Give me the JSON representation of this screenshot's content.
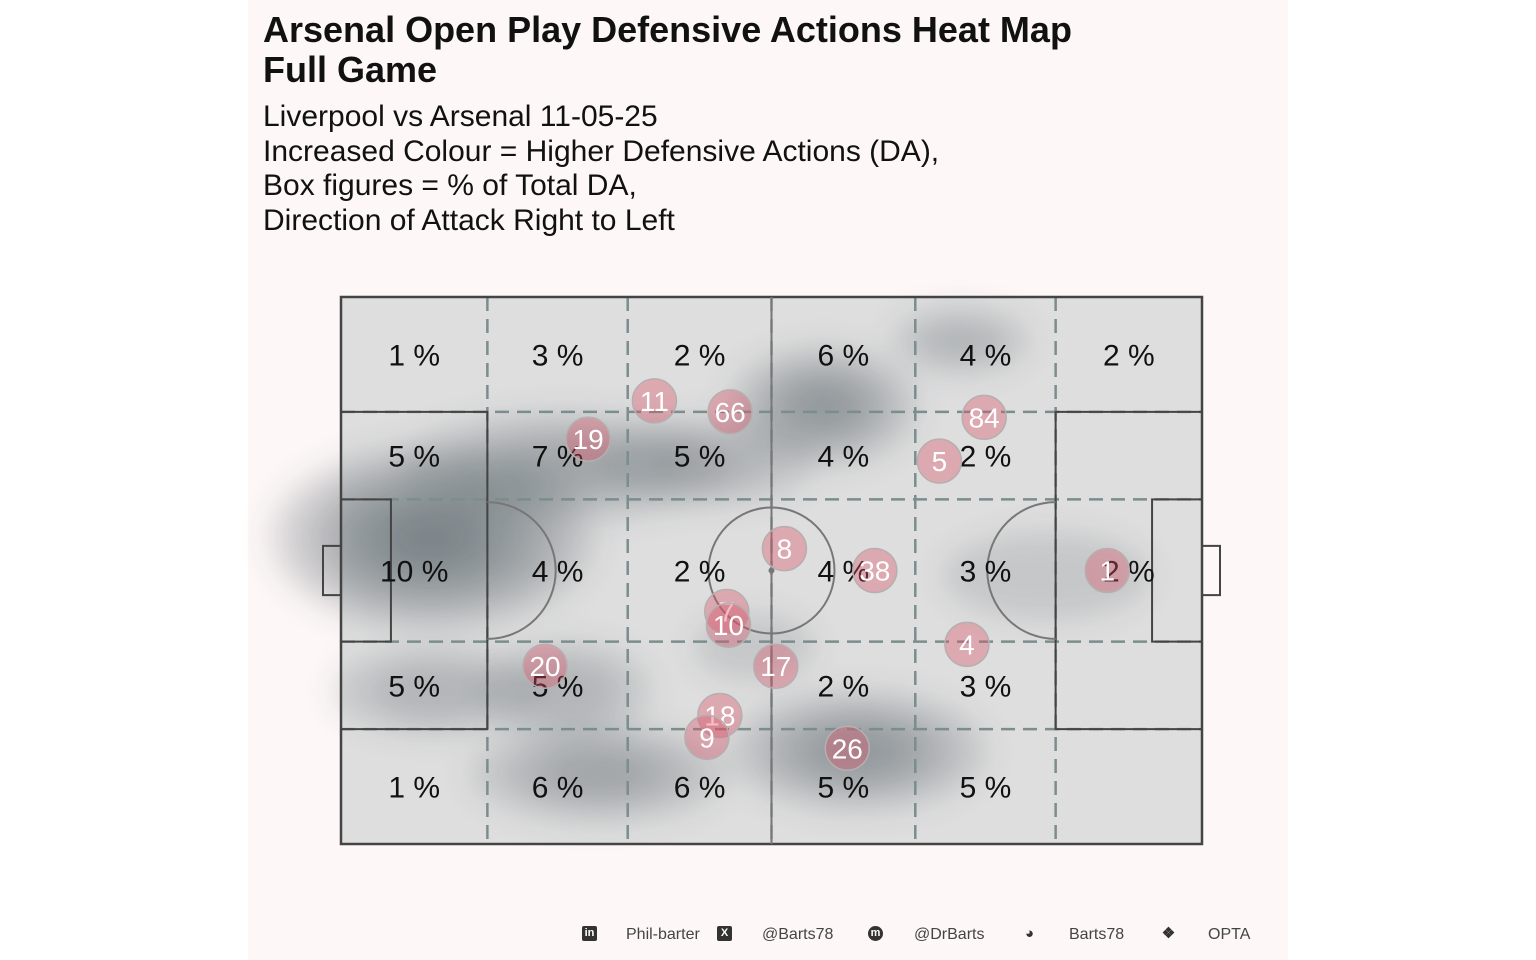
{
  "title": "Arsenal  Open Play Defensive Actions Heat Map\nFull Game",
  "subtitle_lines": [
    "Liverpool vs Arsenal 11-05-25",
    "Increased Colour = Higher Defensive Actions (DA),",
    "Box figures = % of Total DA,",
    "Direction of Attack Right to Left"
  ],
  "colors": {
    "panel_bg": "#fdf7f7",
    "pitch_fill": "#dedede",
    "pitch_line": "#444444",
    "grid_line": "#7b8d8d",
    "density": "#4c5761",
    "marker": "#d9556a",
    "marker_text": "#ffffff"
  },
  "chart_data": {
    "type": "heatmap",
    "description_units": "pitch coordinates 0-100 (x: length, y: width)",
    "zone_percent_labels": [
      [
        "1 %",
        "3 %",
        "2 %",
        "6 %",
        "4 %",
        "2 %"
      ],
      [
        "5 %",
        "7 %",
        "5 %",
        "4 %",
        "2 %",
        ""
      ],
      [
        "10 %",
        "4 %",
        "2 %",
        "4 %",
        "3 %",
        "2 %"
      ],
      [
        "5 %",
        "5 %",
        "",
        "2 %",
        "3 %",
        ""
      ],
      [
        "1 %",
        "6 %",
        "6 %",
        "5 %",
        "5 %",
        ""
      ]
    ],
    "zone_x_edges": [
      0,
      17,
      33.3,
      50,
      66.7,
      83,
      100
    ],
    "zone_y_edges": [
      0,
      21,
      37,
      63,
      79,
      100
    ],
    "players": [
      {
        "number": "11",
        "x": 36.4,
        "y": 19
      },
      {
        "number": "66",
        "x": 45.2,
        "y": 21
      },
      {
        "number": "19",
        "x": 28.7,
        "y": 26
      },
      {
        "number": "84",
        "x": 74.7,
        "y": 22
      },
      {
        "number": "5",
        "x": 69.5,
        "y": 30
      },
      {
        "number": "8",
        "x": 51.5,
        "y": 46
      },
      {
        "number": "38",
        "x": 62.0,
        "y": 50
      },
      {
        "number": "1",
        "x": 89.0,
        "y": 50
      },
      {
        "number": "7",
        "x": 44.8,
        "y": 57.5
      },
      {
        "number": "10",
        "x": 45.0,
        "y": 60
      },
      {
        "number": "4",
        "x": 72.7,
        "y": 63.5
      },
      {
        "number": "17",
        "x": 50.5,
        "y": 67.5
      },
      {
        "number": "20",
        "x": 23.7,
        "y": 67.5
      },
      {
        "number": "18",
        "x": 44.0,
        "y": 76.5
      },
      {
        "number": "9",
        "x": 42.5,
        "y": 80.5
      },
      {
        "number": "26",
        "x": 58.8,
        "y": 82.5
      }
    ],
    "density_blobs": [
      {
        "x": 10.5,
        "y": 44,
        "rx": 19,
        "ry": 17,
        "level": 6
      },
      {
        "x": 26,
        "y": 31,
        "rx": 19,
        "ry": 10,
        "level": 3
      },
      {
        "x": 56,
        "y": 20,
        "rx": 11,
        "ry": 11,
        "level": 4
      },
      {
        "x": 72,
        "y": 8,
        "rx": 8,
        "ry": 6,
        "level": 2
      },
      {
        "x": 60,
        "y": 83,
        "rx": 15,
        "ry": 11,
        "level": 4
      },
      {
        "x": 30,
        "y": 87,
        "rx": 15,
        "ry": 9,
        "level": 3
      },
      {
        "x": 11,
        "y": 72,
        "rx": 12,
        "ry": 8,
        "level": 2
      },
      {
        "x": 48,
        "y": 64,
        "rx": 7,
        "ry": 6,
        "level": 1
      },
      {
        "x": 82,
        "y": 51,
        "rx": 12,
        "ry": 8,
        "level": 1
      },
      {
        "x": 43,
        "y": 30,
        "rx": 12,
        "ry": 8,
        "level": 2
      },
      {
        "x": 26,
        "y": 72,
        "rx": 10,
        "ry": 9,
        "level": 2
      }
    ]
  },
  "footer": [
    {
      "icon": "linkedin-icon",
      "glyph": "in",
      "text": "Phil-barter"
    },
    {
      "icon": "x-twitter-icon",
      "glyph": "X",
      "text": "@Barts78"
    },
    {
      "icon": "mastodon-icon",
      "glyph": "m",
      "text": "@DrBarts"
    },
    {
      "icon": "github-icon",
      "glyph": "◕",
      "text": "Barts78"
    },
    {
      "icon": "dropbox-icon",
      "glyph": "❖",
      "text": "OPTA"
    }
  ]
}
